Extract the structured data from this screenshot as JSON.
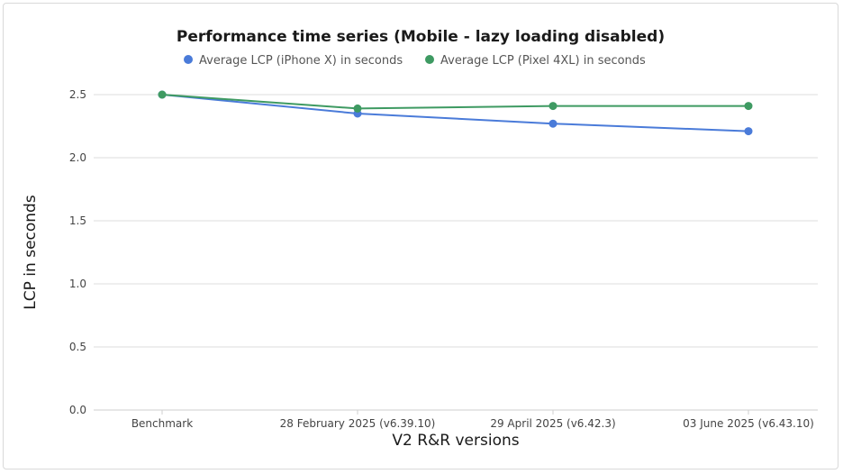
{
  "chart_data": {
    "type": "line",
    "title": "Performance time series (Mobile - lazy loading disabled)",
    "xlabel": "V2 R&R versions",
    "ylabel": "LCP in seconds",
    "categories": [
      "Benchmark",
      "28 February 2025 (v6.39.10)",
      "29 April 2025 (v6.42.3)",
      "03 June 2025 (v6.43.10)"
    ],
    "ylim": [
      0,
      2.5
    ],
    "yticks": [
      "0.0",
      "0.5",
      "1.0",
      "1.5",
      "2.0",
      "2.5"
    ],
    "grid": true,
    "legend_position": "top",
    "series": [
      {
        "name": "Average LCP (iPhone X) in seconds",
        "color": "#4a7bd9",
        "values": [
          2.5,
          2.35,
          2.27,
          2.21
        ]
      },
      {
        "name": "Average LCP (Pixel 4XL) in seconds",
        "color": "#3e9a62",
        "values": [
          2.5,
          2.39,
          2.41,
          2.41
        ]
      }
    ]
  }
}
